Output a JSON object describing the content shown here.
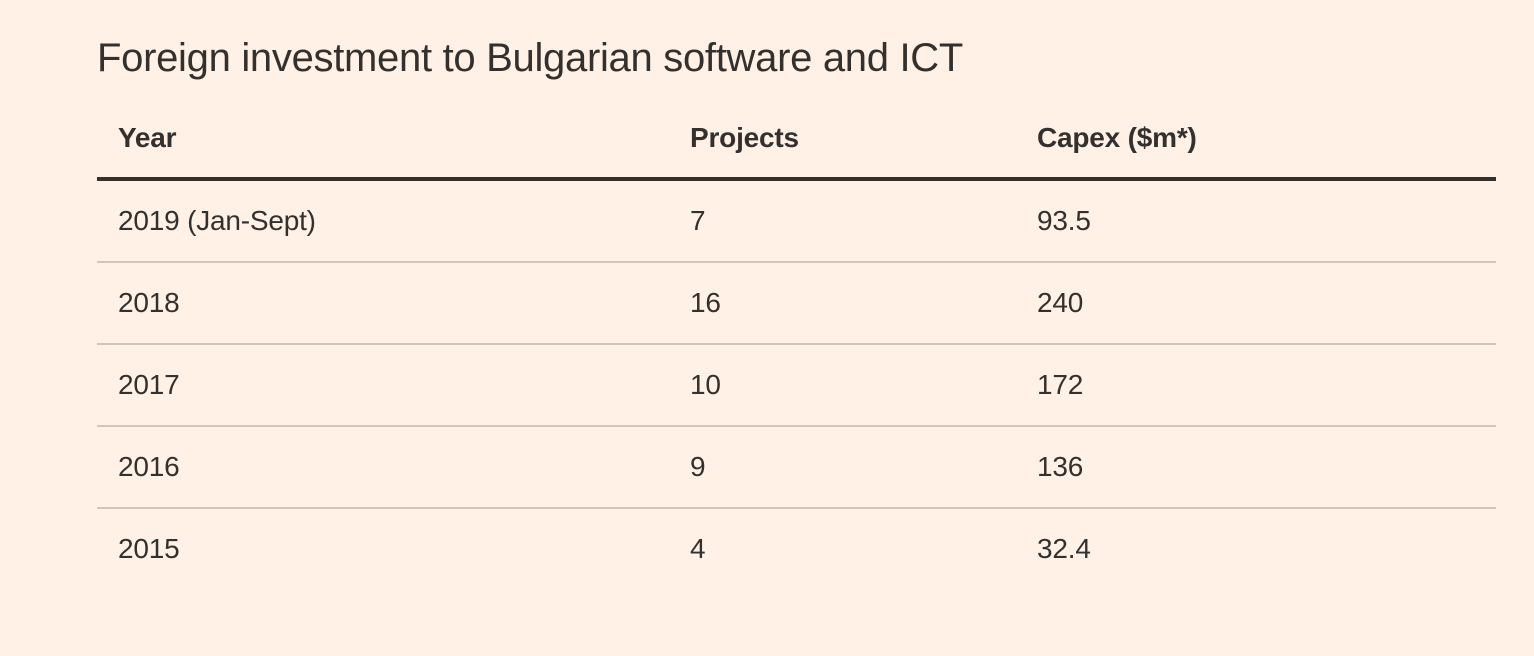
{
  "page": {
    "background_color": "#FFF1E5",
    "text_color": "#33302E",
    "header_rule_color": "#33302E",
    "divider_color": "#CFC6BC"
  },
  "chart_data": {
    "type": "table",
    "title": "Foreign investment to Bulgarian software and ICT",
    "columns": [
      "Year",
      "Projects",
      "Capex ($m*)"
    ],
    "rows": [
      [
        "2019 (Jan-Sept)",
        "7",
        "93.5"
      ],
      [
        "2018",
        "16",
        "240"
      ],
      [
        "2017",
        "10",
        "172"
      ],
      [
        "2016",
        "9",
        "136"
      ],
      [
        "2015",
        "4",
        "32.4"
      ]
    ],
    "layout": {
      "grid": "horizontal-dividers-only",
      "header_rule": "thick",
      "last_row_divider": false
    }
  }
}
